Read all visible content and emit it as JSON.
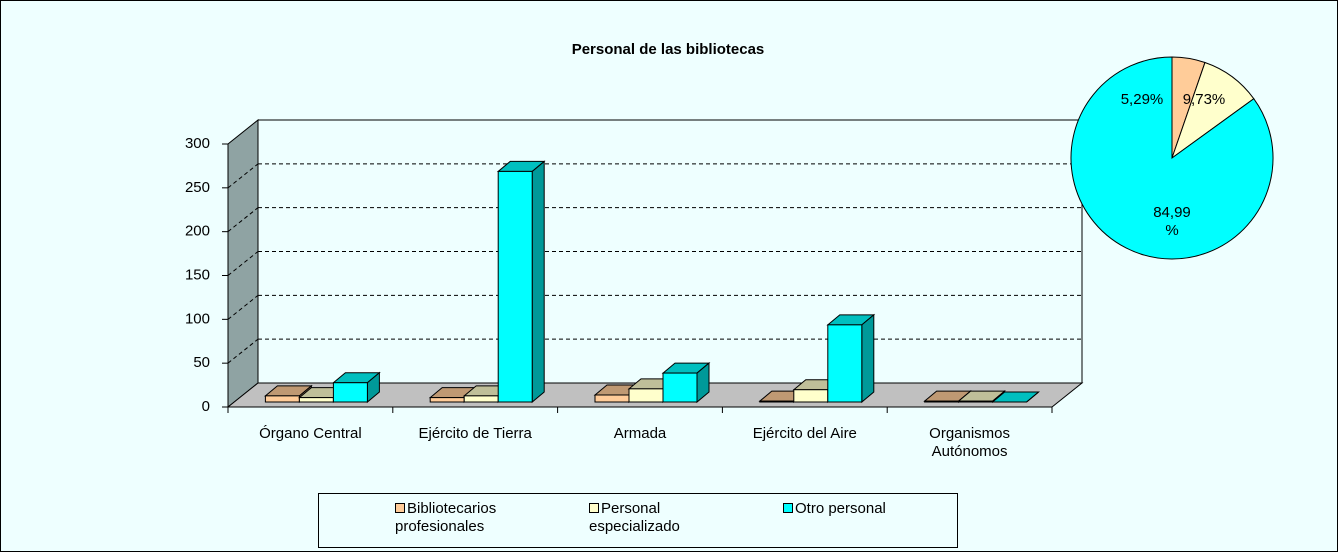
{
  "chart_data": [
    {
      "type": "bar3d",
      "title": "Personal de las bibliotecas",
      "categories": [
        "Órgano Central",
        "Ejército de Tierra",
        "Armada",
        "Ejército del Aire",
        "Organismos Autónomos"
      ],
      "series": [
        {
          "name": "Bibliotecarios profesionales",
          "color": "#ffcc99",
          "values": [
            7,
            5,
            8,
            1,
            1
          ]
        },
        {
          "name": "Personal especializado",
          "color": "#ffffcc",
          "values": [
            5,
            7,
            15,
            14,
            1
          ]
        },
        {
          "name": "Otro personal",
          "color": "#00ffff",
          "values": [
            22,
            263,
            33,
            88,
            0
          ]
        }
      ],
      "ylim": [
        0,
        300
      ],
      "yticks": [
        0,
        50,
        100,
        150,
        200,
        250,
        300
      ],
      "grid": true
    },
    {
      "type": "pie",
      "values": [
        5.29,
        9.73,
        84.99
      ],
      "value_labels": [
        "5,29%",
        "9,73%",
        "84,99 %"
      ],
      "colors": [
        "#ffcc99",
        "#ffffcc",
        "#00ffff"
      ]
    }
  ]
}
